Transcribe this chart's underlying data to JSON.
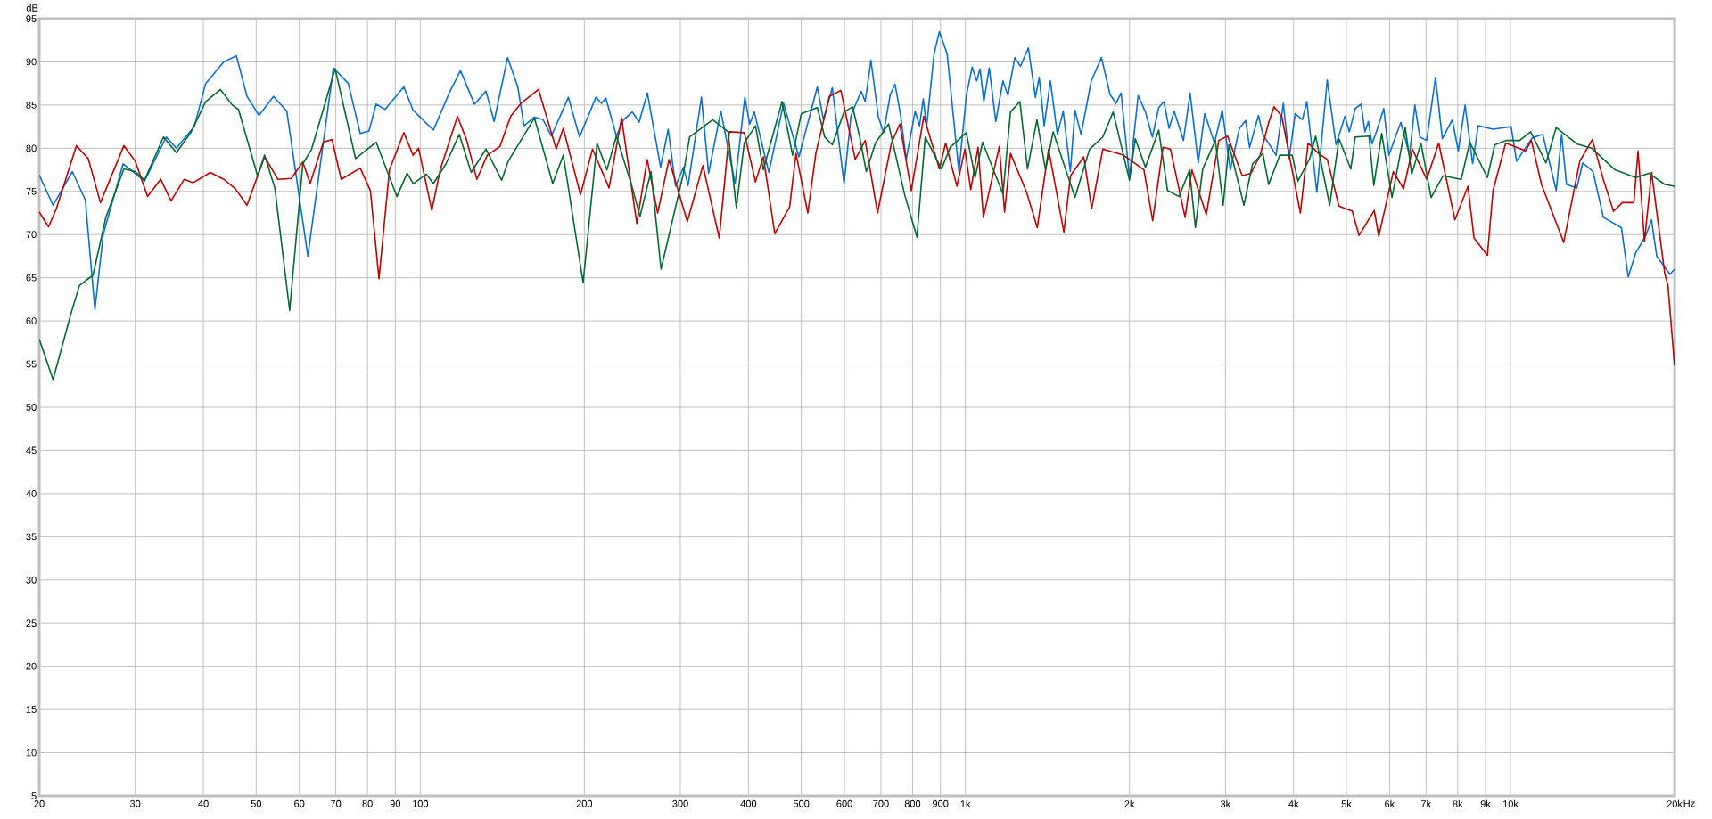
{
  "chart_data": {
    "type": "line",
    "ylabel": "dB",
    "xlabel": "Hz",
    "log": "x",
    "grid": true,
    "xlim": [
      20,
      20000
    ],
    "ylim": [
      5,
      95
    ],
    "xticks": [
      20,
      30,
      40,
      50,
      60,
      70,
      80,
      90,
      100,
      200,
      300,
      400,
      500,
      600,
      700,
      800,
      900,
      {
        "value": 1000,
        "label": "1k"
      },
      {
        "value": 2000,
        "label": "2k"
      },
      {
        "value": 3000,
        "label": "3k"
      },
      {
        "value": 4000,
        "label": "4k"
      },
      {
        "value": 5000,
        "label": "5k"
      },
      {
        "value": 6000,
        "label": "6k"
      },
      {
        "value": 7000,
        "label": "7k"
      },
      {
        "value": 8000,
        "label": "8k"
      },
      {
        "value": 9000,
        "label": "9k"
      },
      {
        "value": 10000,
        "label": "10k"
      },
      {
        "value": 20000,
        "label": "20k"
      }
    ],
    "yticks": [
      5,
      10,
      15,
      20,
      25,
      30,
      35,
      40,
      45,
      50,
      55,
      60,
      65,
      70,
      75,
      80,
      85,
      90,
      95
    ],
    "series": [
      {
        "color": "#0a6fd4",
        "x": [
          20,
          21.2,
          23,
          24.3,
          25.3,
          26.2,
          28.5,
          31.2,
          34.2,
          35.7,
          38.5,
          40.4,
          43.6,
          46,
          48.1,
          50.6,
          53.8,
          56.9,
          62.2,
          69.3,
          73.8,
          77.6,
          80.5,
          83,
          86.2,
          93.3,
          97,
          105.7,
          113,
          118.5,
          125.7,
          132,
          136.6,
          144.6,
          151,
          155,
          162,
          168,
          174,
          187,
          196,
          210,
          215,
          219,
          229,
          236,
          245,
          252,
          261,
          276,
          285,
          294,
          304,
          310,
          328,
          338,
          356,
          378,
          394,
          402,
          410,
          436,
          464,
          495,
          535,
          549,
          570,
          599,
          617,
          644,
          655,
          671,
          692,
          708,
          728,
          743,
          760,
          779,
          809,
          824,
          837,
          849,
          876,
          896,
          926,
          973,
          1004,
          1029,
          1049,
          1064,
          1081,
          1106,
          1137,
          1172,
          1197,
          1232,
          1262,
          1305,
          1344,
          1366,
          1395,
          1432,
          1475,
          1512,
          1558,
          1589,
          1630,
          1702,
          1777,
          1843,
          1890,
          1931,
          2000,
          2075,
          2140,
          2203,
          2263,
          2313,
          2364,
          2416,
          2512,
          2584,
          2674,
          2748,
          2864,
          2960,
          3063,
          3183,
          3268,
          3322,
          3449,
          3514,
          3715,
          3831,
          3927,
          4027,
          4152,
          4231,
          4413,
          4611,
          4786,
          4969,
          5063,
          5190,
          5320,
          5407,
          5488,
          5571,
          5675,
          5855,
          5983,
          6293,
          6530,
          6677,
          6818,
          7018,
          7286,
          7500,
          7820,
          8021,
          8255,
          8522,
          8723,
          9290,
          10026,
          10260,
          10962,
          11463,
          12131,
          12409,
          12670,
          13234,
          13568,
          14170,
          14805,
          15975,
          16442,
          16977,
          17713,
          18147,
          18548,
          19617,
          20000
        ],
        "values": [
          76.9,
          73.4,
          77.3,
          74,
          61.3,
          70,
          78.2,
          76.2,
          81.3,
          80,
          82.5,
          87.5,
          90,
          90.7,
          86,
          83.8,
          86,
          84.3,
          67.5,
          89.3,
          87.5,
          81.7,
          82,
          85.1,
          84.5,
          87.1,
          84.4,
          82.1,
          86.4,
          89,
          85.1,
          86.6,
          83.1,
          90.5,
          87.1,
          82.6,
          83.6,
          83.3,
          81.4,
          85.9,
          81.3,
          85.9,
          85.2,
          85.8,
          81.4,
          83.3,
          84.2,
          83,
          86.4,
          77.8,
          82.2,
          75.6,
          77.8,
          75.7,
          85.9,
          77.1,
          84.3,
          75.9,
          85.9,
          82.8,
          84.2,
          77.2,
          85.2,
          79,
          87.1,
          83.3,
          87,
          75.9,
          83.8,
          86.6,
          85.4,
          90.2,
          83.7,
          81.8,
          86.2,
          87.4,
          84,
          78.7,
          84.3,
          82.6,
          85.7,
          82.5,
          90.9,
          93.5,
          90.9,
          77.3,
          86.1,
          89.4,
          87.8,
          89.2,
          85.4,
          89.3,
          83.1,
          87.8,
          86.1,
          90.5,
          89.5,
          91.6,
          85.9,
          88.2,
          82.6,
          87.8,
          81.6,
          84.3,
          77.3,
          84.4,
          81.6,
          87.8,
          90.5,
          86.2,
          85.2,
          86.4,
          76.6,
          86.1,
          84.2,
          81.3,
          84.7,
          85.4,
          82.3,
          84.3,
          80.9,
          86.4,
          78.3,
          84,
          80.6,
          84.4,
          77.5,
          82.3,
          83.2,
          80.1,
          83.8,
          81.6,
          79.2,
          85.2,
          78.8,
          84,
          83.3,
          85.4,
          74.9,
          87.9,
          80.4,
          83.7,
          81.9,
          84.6,
          85.1,
          81.9,
          83.1,
          80.5,
          81.9,
          84.6,
          79.2,
          83,
          79.2,
          85,
          81.3,
          80.9,
          88.2,
          81.1,
          83.3,
          79.7,
          85,
          78.2,
          82.6,
          82.2,
          82.5,
          78.5,
          81.2,
          81.6,
          75.1,
          81.6,
          75.8,
          75.4,
          78.3,
          77.3,
          72,
          70.8,
          65.1,
          67.9,
          69.9,
          71.7,
          67.5,
          65.4,
          66
        ]
      },
      {
        "color": "#c00000",
        "x": [
          20,
          20.8,
          21.5,
          23.4,
          24.6,
          25.9,
          28.6,
          30,
          31.6,
          33.4,
          34.9,
          36.9,
          38.3,
          41.2,
          43.6,
          45.8,
          48.1,
          51.8,
          54.8,
          58,
          60.9,
          62.8,
          66.4,
          68.9,
          71.6,
          77.6,
          81,
          84,
          87.8,
          93.3,
          97,
          99.3,
          105,
          108.8,
          117,
          121.7,
          127,
          132.7,
          140,
          146.5,
          153,
          164.8,
          177.6,
          183,
          196.8,
          207,
          222,
          234,
          249.6,
          260.8,
          272.6,
          286,
          309,
          330,
          353.6,
          369,
          393,
          412,
          426,
          447,
          476,
          489,
          514,
          532,
          563,
          591,
          628,
          655,
          690,
          732,
          758,
          796,
          839,
          896,
          920,
          965,
          998,
          1023,
          1055,
          1079,
          1154,
          1180,
          1210,
          1295,
          1355,
          1421,
          1516,
          1559,
          1649,
          1705,
          1787,
          1950,
          2126,
          2206,
          2304,
          2378,
          2530,
          2603,
          2767,
          2917,
          3027,
          3221,
          3342,
          3473,
          3602,
          3684,
          3806,
          4117,
          4254,
          4445,
          4611,
          4846,
          5126,
          5274,
          5625,
          5732,
          6096,
          6367,
          6607,
          7018,
          7386,
          7908,
          8355,
          8573,
          9070,
          9290,
          9800,
          10660,
          10920,
          11400,
          12520,
          13400,
          14130,
          14800,
          15450,
          16040,
          16840,
          17140,
          17610,
          18150,
          19200,
          19450,
          20000
        ],
        "values": [
          72.6,
          70.9,
          73,
          80.3,
          78.8,
          73.7,
          80.3,
          78.5,
          74.4,
          76.4,
          73.9,
          76.4,
          76,
          77.2,
          76.4,
          75.3,
          73.4,
          79,
          76.4,
          76.5,
          78.4,
          75.9,
          80.7,
          81,
          76.4,
          77.7,
          75.1,
          64.9,
          77.5,
          81.8,
          79.2,
          80,
          72.8,
          77.5,
          83.7,
          80.9,
          76.4,
          79.2,
          80.2,
          83.7,
          85.2,
          86.8,
          79.9,
          82.3,
          74.6,
          79.9,
          75.4,
          83.5,
          71.3,
          78.7,
          72.5,
          78.7,
          71.5,
          78,
          69.6,
          81.9,
          81.8,
          76.1,
          79,
          70.1,
          73.2,
          79.4,
          72.5,
          79.5,
          86,
          86.7,
          78.7,
          80.9,
          72.5,
          80.6,
          82.8,
          75.1,
          83.7,
          77.6,
          80.6,
          75.6,
          79.9,
          75.2,
          80.1,
          72,
          80.2,
          72.6,
          79.4,
          74.9,
          70.8,
          79.9,
          70.3,
          76.8,
          79,
          73,
          79.9,
          79.2,
          77.5,
          71.6,
          80.1,
          79.9,
          72,
          77.5,
          72.3,
          80.9,
          81.4,
          76.8,
          77.1,
          79.2,
          83,
          84.8,
          83.7,
          72.5,
          80.6,
          79.4,
          78.7,
          73.3,
          72.7,
          69.9,
          72.8,
          69.8,
          77.3,
          75.3,
          79.9,
          76.4,
          80.6,
          71.7,
          75.6,
          69.6,
          67.6,
          75.1,
          80.6,
          79.7,
          80.9,
          75.8,
          69.1,
          78.5,
          81,
          76.4,
          72.7,
          73.7,
          73.7,
          79.7,
          69.2,
          77.2,
          65.4,
          64.1,
          54.8
        ]
      },
      {
        "color": "#006b30",
        "x": [
          20,
          21.2,
          22.9,
          23.7,
          25.1,
          26.5,
          28.6,
          30,
          31.2,
          33.8,
          35.7,
          38,
          40.4,
          43,
          45.2,
          46.4,
          50.3,
          51.8,
          54.1,
          57.6,
          60.9,
          63.2,
          69.8,
          76.1,
          83,
          90.6,
          94.6,
          97.1,
          102.6,
          105.7,
          111.5,
          117.9,
          124,
          132,
          141,
          145,
          162,
          175,
          183,
          199,
          211,
          220,
          229,
          245,
          253,
          265,
          276.5,
          304,
          312,
          344,
          367,
          380,
          393,
          412,
          426,
          461,
          482,
          500,
          535,
          552,
          570,
          599,
          621,
          640,
          658,
          684,
          723,
          774,
          815,
          844,
          904,
          938,
          1004,
          1042,
          1075,
          1172,
          1210,
          1259,
          1300,
          1353,
          1403,
          1449,
          1589,
          1690,
          1787,
          1867,
          2000,
          2050,
          2140,
          2263,
          2349,
          2466,
          2578,
          2642,
          2725,
          2875,
          2971,
          3045,
          3244,
          3364,
          3514,
          3601,
          3775,
          3977,
          4075,
          4282,
          4391,
          4659,
          4846,
          5094,
          5190,
          5501,
          5614,
          5805,
          6062,
          6410,
          6591,
          6851,
          7152,
          7520,
          8121,
          8422,
          9070,
          9357,
          9832,
          10394,
          10890,
          11620,
          12131,
          13234,
          14095,
          15550,
          16977,
          17940,
          19200,
          20000
        ],
        "values": [
          57.9,
          53.2,
          61,
          64.1,
          65.3,
          72,
          77.6,
          77.3,
          76.3,
          81.3,
          79.5,
          81.9,
          85.4,
          86.8,
          85,
          84.5,
          76.8,
          79.2,
          75.4,
          61.2,
          78.2,
          79.9,
          89.2,
          78.8,
          80.7,
          74.4,
          77.1,
          75.9,
          77,
          75.9,
          78.2,
          81.6,
          77.2,
          79.9,
          76.3,
          78.5,
          83.5,
          75.9,
          79.2,
          64.4,
          80.6,
          77.5,
          81.4,
          75.4,
          72.1,
          77.3,
          66,
          77.1,
          81.3,
          83.3,
          81.9,
          73.1,
          80.6,
          82.6,
          77.5,
          85.4,
          79.2,
          84,
          84.7,
          81.3,
          80.4,
          84.2,
          84.8,
          81.3,
          77.3,
          80.6,
          82.8,
          74.6,
          69.7,
          81.3,
          77.6,
          80.1,
          81.8,
          76.6,
          80.7,
          74.7,
          84.2,
          85.4,
          77.6,
          83.3,
          77.5,
          81.9,
          74.3,
          79.9,
          81.3,
          84.2,
          76.3,
          81.1,
          77.8,
          82.1,
          75.1,
          74.4,
          77.5,
          70.8,
          77.6,
          80.9,
          73.4,
          80.4,
          73.4,
          78.2,
          79.4,
          75.8,
          79.2,
          79.2,
          76.2,
          78.8,
          81.4,
          73.4,
          81.1,
          77.6,
          81.3,
          81.4,
          75.7,
          81.7,
          74.3,
          82.4,
          77,
          80.6,
          74.3,
          76.8,
          76.4,
          80.7,
          76.6,
          80.4,
          80.9,
          80.9,
          81.9,
          78.3,
          82.4,
          80.5,
          80,
          77.5,
          76.6,
          77.1,
          75.8,
          75.6
        ]
      }
    ]
  }
}
